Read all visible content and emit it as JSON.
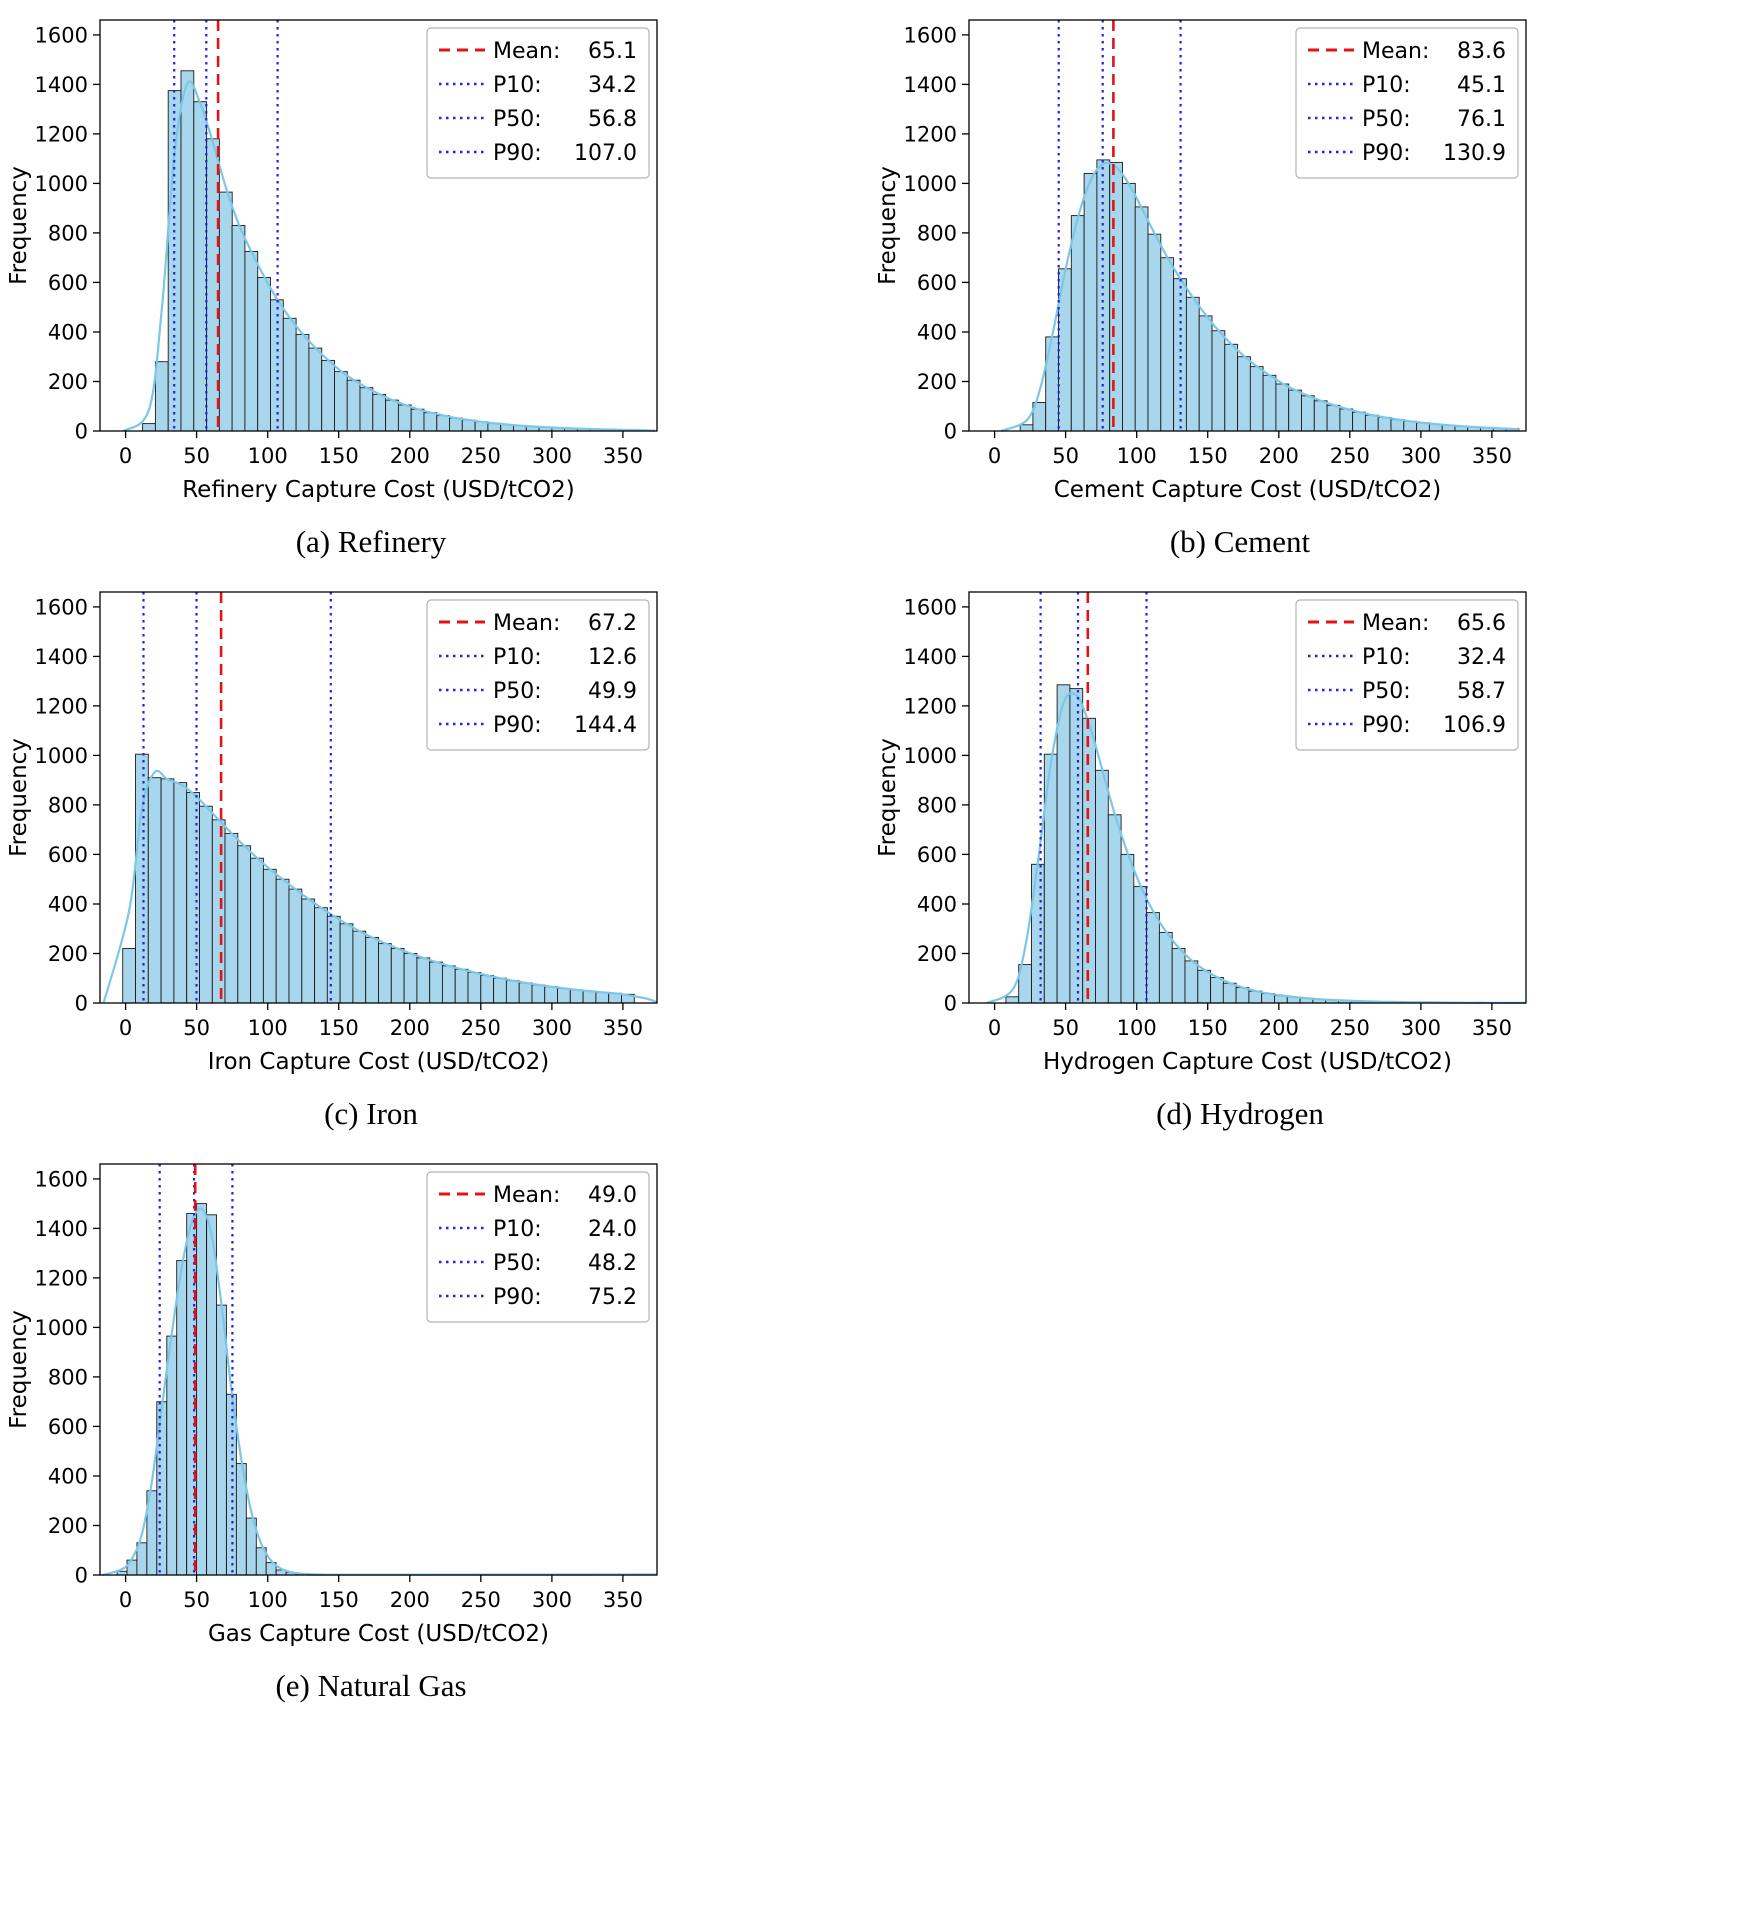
{
  "figure": {
    "background": "#ffffff"
  },
  "colors": {
    "bar_fill": "#a8d6ec",
    "bar_edge": "#1a1a1a",
    "kde": "#7cc7e8",
    "mean": "#e21414",
    "percentile": "#2222dd",
    "legend_border": "#b3b3b3",
    "legend_bg": "#ffffff",
    "axis": "#000000"
  },
  "axes": {
    "ylabel": "Frequency",
    "ymax": 1660,
    "xmin": -18,
    "xmax": 374,
    "yticks": [
      0,
      200,
      400,
      600,
      800,
      1000,
      1200,
      1400,
      1600
    ],
    "xticks": [
      0,
      50,
      100,
      150,
      200,
      250,
      300,
      350
    ]
  },
  "legend_labels": {
    "mean": "Mean:",
    "p10": "P10:",
    "p50": "P50:",
    "p90": "P90:"
  },
  "chart_data": [
    {
      "id": "refinery",
      "type": "histogram",
      "caption": "(a) Refinery",
      "xlabel": "Refinery Capture Cost (USD/tCO2)",
      "ylabel": "Frequency",
      "stats": {
        "mean": "65.1",
        "p10": "34.2",
        "p50": "56.8",
        "p90": "107.0"
      },
      "bins": {
        "start": 12,
        "width": 9
      },
      "counts": [
        30,
        280,
        1375,
        1455,
        1330,
        1180,
        965,
        830,
        725,
        620,
        530,
        455,
        390,
        335,
        285,
        240,
        205,
        175,
        148,
        125,
        105,
        88,
        74,
        62,
        52,
        44,
        37,
        31,
        26,
        22,
        18,
        15,
        13,
        11,
        9,
        7,
        6,
        5,
        4,
        3
      ]
    },
    {
      "id": "cement",
      "type": "histogram",
      "caption": "(b) Cement",
      "xlabel": "Cement Capture Cost (USD/tCO2)",
      "ylabel": "Frequency",
      "stats": {
        "mean": "83.6",
        "p10": "45.1",
        "p50": "76.1",
        "p90": "130.9"
      },
      "bins": {
        "start": 18,
        "width": 9
      },
      "counts": [
        25,
        115,
        380,
        655,
        870,
        1040,
        1095,
        1085,
        1000,
        905,
        795,
        700,
        615,
        540,
        465,
        405,
        350,
        300,
        260,
        225,
        190,
        165,
        142,
        122,
        104,
        89,
        76,
        64,
        55,
        46,
        39,
        33,
        28,
        23,
        19,
        16,
        13,
        11,
        9
      ]
    },
    {
      "id": "iron",
      "type": "histogram",
      "caption": "(c) Iron",
      "xlabel": "Iron Capture Cost (USD/tCO2)",
      "ylabel": "Frequency",
      "stats": {
        "mean": "67.2",
        "p10": "12.6",
        "p50": "49.9",
        "p90": "144.4"
      },
      "bins": {
        "start": -2,
        "width": 9
      },
      "counts": [
        220,
        1005,
        910,
        905,
        890,
        850,
        795,
        740,
        685,
        635,
        585,
        540,
        500,
        460,
        420,
        385,
        350,
        320,
        290,
        265,
        240,
        220,
        200,
        182,
        165,
        150,
        136,
        123,
        111,
        100,
        90,
        81,
        73,
        66,
        59,
        53,
        48,
        43,
        39,
        35
      ]
    },
    {
      "id": "hydrogen",
      "type": "histogram",
      "caption": "(d) Hydrogen",
      "xlabel": "Hydrogen Capture Cost (USD/tCO2)",
      "ylabel": "Frequency",
      "stats": {
        "mean": "65.6",
        "p10": "32.4",
        "p50": "58.7",
        "p90": "106.9"
      },
      "bins": {
        "start": 8,
        "width": 9
      },
      "counts": [
        25,
        155,
        560,
        1005,
        1285,
        1270,
        1150,
        940,
        760,
        600,
        470,
        365,
        285,
        220,
        170,
        132,
        103,
        80,
        62,
        48,
        38,
        30,
        24,
        19,
        15,
        12,
        10,
        8,
        6,
        5,
        4,
        3,
        3,
        2,
        2,
        1,
        1,
        1,
        1
      ]
    },
    {
      "id": "natural-gas",
      "type": "histogram",
      "caption": "(e) Natural Gas",
      "xlabel": "Gas Capture Cost (USD/tCO2)",
      "ylabel": "Frequency",
      "stats": {
        "mean": "49.0",
        "p10": "24.0",
        "p50": "48.2",
        "p90": "75.2"
      },
      "bins": {
        "start": -6,
        "width": 7
      },
      "counts": [
        15,
        60,
        130,
        340,
        700,
        965,
        1270,
        1460,
        1500,
        1455,
        1090,
        730,
        450,
        230,
        110,
        50,
        20,
        10,
        5,
        3,
        2
      ]
    }
  ]
}
